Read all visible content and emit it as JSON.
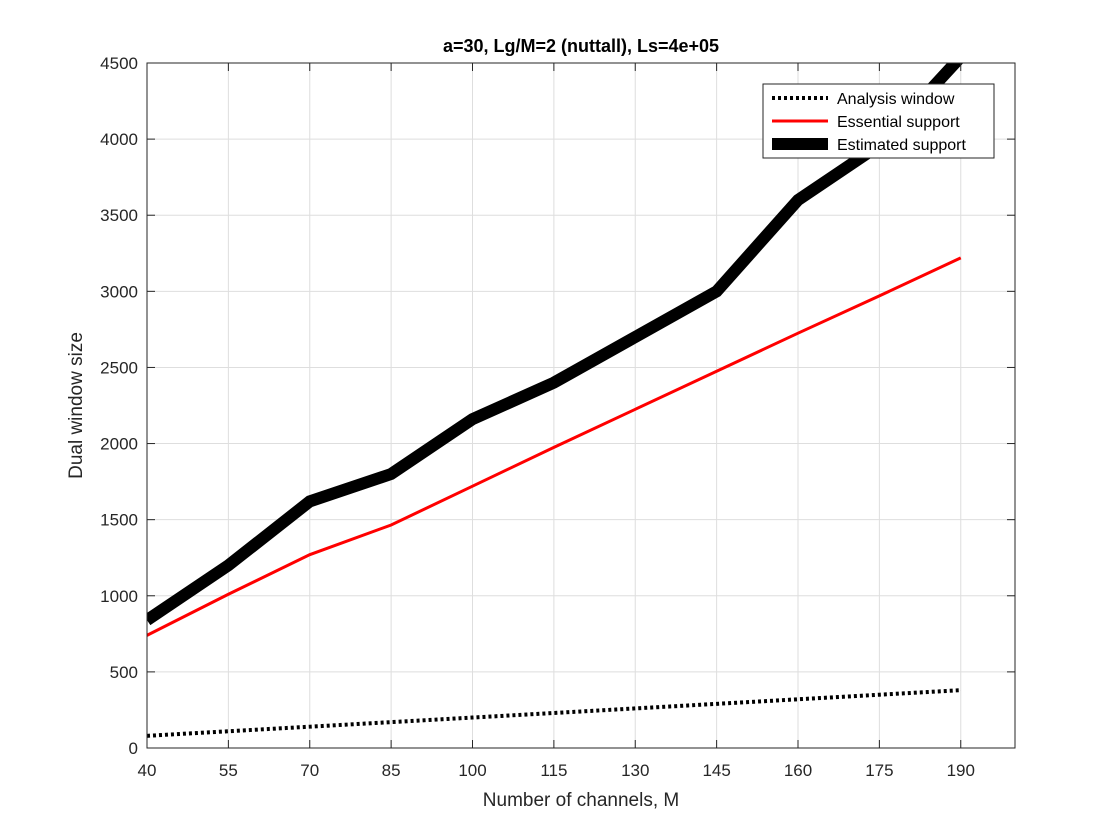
{
  "chart_data": {
    "type": "line",
    "title": "a=30, Lg/M=2 (nuttall), Ls=4e+05",
    "xlabel": "Number of channels, M",
    "ylabel": "Dual window size",
    "xlim": [
      40,
      200
    ],
    "ylim": [
      0,
      4500
    ],
    "xticks": [
      40,
      55,
      70,
      85,
      100,
      115,
      130,
      145,
      160,
      175,
      190
    ],
    "yticks": [
      0,
      500,
      1000,
      1500,
      2000,
      2500,
      3000,
      3500,
      4000,
      4500
    ],
    "grid": true,
    "legend_position": "top-right",
    "series": [
      {
        "name": "Analysis window",
        "color": "#000000",
        "style": "dotted",
        "x": [
          40,
          55,
          70,
          85,
          100,
          115,
          130,
          145,
          160,
          175,
          190
        ],
        "values": [
          80,
          110,
          140,
          170,
          200,
          230,
          260,
          290,
          320,
          350,
          380
        ]
      },
      {
        "name": "Essential support",
        "color": "#ff0000",
        "style": "solid",
        "x": [
          40,
          55,
          70,
          85,
          100,
          115,
          130,
          145,
          160,
          175,
          190
        ],
        "values": [
          740,
          1010,
          1270,
          1465,
          1720,
          1975,
          2225,
          2475,
          2725,
          2970,
          3220
        ]
      },
      {
        "name": "Estimated support",
        "color": "#000000",
        "style": "thick",
        "x": [
          40,
          55,
          70,
          85,
          100,
          115,
          130,
          145,
          160,
          175,
          190
        ],
        "values": [
          840,
          1200,
          1620,
          1800,
          2160,
          2400,
          2700,
          3000,
          3600,
          3960,
          4540
        ]
      }
    ]
  }
}
